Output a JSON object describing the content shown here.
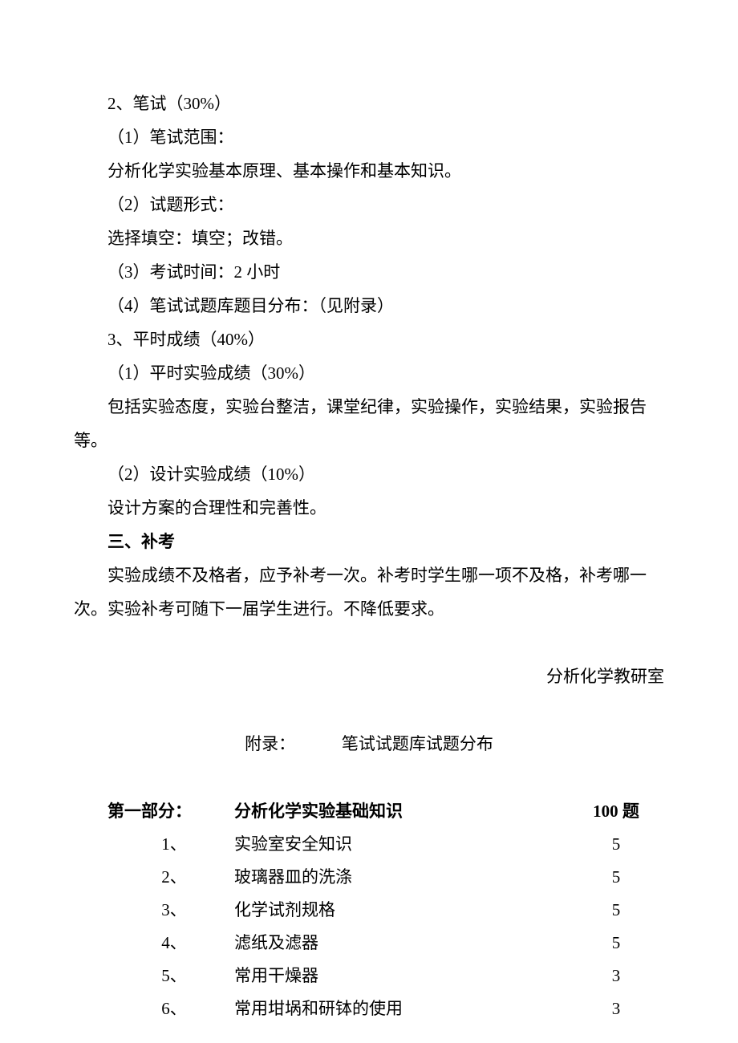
{
  "lines": [
    {
      "text": "2、笔试（30%）",
      "indent": true
    },
    {
      "text": "（1）笔试范围：",
      "indent": true
    },
    {
      "text": "分析化学实验基本原理、基本操作和基本知识。",
      "indent": true
    },
    {
      "text": "（2）试题形式：",
      "indent": true
    },
    {
      "text": "选择填空：填空；改错。",
      "indent": true
    },
    {
      "text": "（3）考试时间：2 小时",
      "indent": true
    },
    {
      "text": "（4）笔试试题库题目分布：（见附录）",
      "indent": true
    },
    {
      "text": "3、平时成绩（40%）",
      "indent": true
    },
    {
      "text": "（1）平时实验成绩（30%）",
      "indent": true
    },
    {
      "text": "包括实验态度，实验台整洁，课堂纪律，实验操作，实验结果，实验报告",
      "indent": true
    },
    {
      "text": "等。",
      "indent": false
    },
    {
      "text": "（2）设计实验成绩（10%）",
      "indent": true
    },
    {
      "text": "设计方案的合理性和完善性。",
      "indent": true
    },
    {
      "text": "三、补考",
      "indent": true,
      "bold": true
    },
    {
      "text": "实验成绩不及格者，应予补考一次。补考时学生哪一项不及格，补考哪一",
      "indent": true
    },
    {
      "text": "次。实验补考可随下一届学生进行。不降低要求。",
      "indent": false
    }
  ],
  "signature": "分析化学教研室",
  "appendix": {
    "label": "附录：",
    "title": "笔试试题库试题分布"
  },
  "section": {
    "label": "第一部分：",
    "title": "分析化学实验基础知识",
    "count": "100 题"
  },
  "items": [
    {
      "num": "1、",
      "title": "实验室安全知识",
      "count": "5"
    },
    {
      "num": "2、",
      "title": "玻璃器皿的洗涤",
      "count": "5"
    },
    {
      "num": "3、",
      "title": "化学试剂规格",
      "count": "5"
    },
    {
      "num": "4、",
      "title": "滤纸及滤器",
      "count": "5"
    },
    {
      "num": "5、",
      "title": "常用干燥器",
      "count": "3"
    },
    {
      "num": "6、",
      "title": "常用坩埚和研钵的使用",
      "count": "3"
    }
  ]
}
